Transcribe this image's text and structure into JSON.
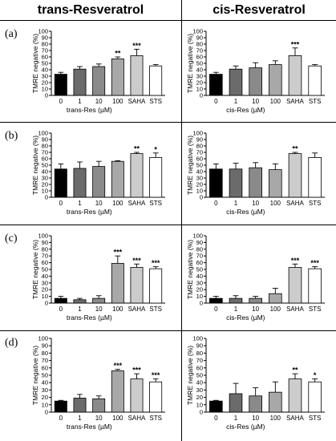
{
  "headers": {
    "left": "trans-Resveratrol",
    "right": "cis-Resveratrol"
  },
  "chart_data": [
    {
      "type": "bar",
      "panel": "(a)",
      "column": "trans",
      "ylabel": "TMRE negative (%)",
      "xlabel": "trans-Res (µM)",
      "ylim": [
        0,
        100
      ],
      "yticks": [
        0,
        10,
        20,
        30,
        40,
        50,
        60,
        70,
        80,
        90,
        100
      ],
      "categories": [
        "0",
        "1",
        "10",
        "100",
        "SAHA",
        "STS"
      ],
      "values": [
        33,
        41,
        45,
        57,
        62,
        46
      ],
      "errors": [
        3,
        4,
        4,
        3,
        10,
        2
      ],
      "annotations": [
        "",
        "",
        "",
        "**",
        "***",
        ""
      ],
      "bar_colors": [
        "#000000",
        "#6b6b6b",
        "#8a8a8a",
        "#a8a8a8",
        "#cccccc",
        "#ffffff"
      ]
    },
    {
      "type": "bar",
      "panel": "(a)",
      "column": "cis",
      "ylabel": "TMRE negative (%)",
      "xlabel": "cis-Res (µM)",
      "ylim": [
        0,
        100
      ],
      "yticks": [
        0,
        10,
        20,
        30,
        40,
        50,
        60,
        70,
        80,
        90,
        100
      ],
      "categories": [
        "0",
        "1",
        "10",
        "100",
        "SAHA",
        "STS"
      ],
      "values": [
        33,
        41,
        43,
        48,
        62,
        46
      ],
      "errors": [
        3,
        5,
        8,
        6,
        12,
        2
      ],
      "annotations": [
        "",
        "",
        "",
        "",
        "***",
        ""
      ],
      "bar_colors": [
        "#000000",
        "#6b6b6b",
        "#8a8a8a",
        "#a8a8a8",
        "#cccccc",
        "#ffffff"
      ]
    },
    {
      "type": "bar",
      "panel": "(b)",
      "column": "trans",
      "ylabel": "TMRE negative (%)",
      "xlabel": "trans-Res (µM)",
      "ylim": [
        0,
        100
      ],
      "yticks": [
        0,
        10,
        20,
        30,
        40,
        50,
        60,
        70,
        80,
        90,
        100
      ],
      "categories": [
        "0",
        "1",
        "10",
        "100",
        "SAHA",
        "STS"
      ],
      "values": [
        44,
        45,
        48,
        56,
        68,
        62
      ],
      "errors": [
        8,
        10,
        8,
        1,
        2,
        7
      ],
      "annotations": [
        "",
        "",
        "",
        "",
        "**",
        "*"
      ],
      "bar_colors": [
        "#000000",
        "#6b6b6b",
        "#8a8a8a",
        "#a8a8a8",
        "#cccccc",
        "#ffffff"
      ]
    },
    {
      "type": "bar",
      "panel": "(b)",
      "column": "cis",
      "ylabel": "TMRE negative (%)",
      "xlabel": "cis-Res (µM)",
      "ylim": [
        0,
        100
      ],
      "yticks": [
        0,
        10,
        20,
        30,
        40,
        50,
        60,
        70,
        80,
        90,
        100
      ],
      "categories": [
        "0",
        "1",
        "10",
        "100",
        "SAHA",
        "STS"
      ],
      "values": [
        44,
        44,
        46,
        43,
        68,
        62
      ],
      "errors": [
        8,
        9,
        8,
        9,
        2,
        7
      ],
      "annotations": [
        "",
        "",
        "",
        "",
        "**",
        ""
      ],
      "bar_colors": [
        "#000000",
        "#6b6b6b",
        "#8a8a8a",
        "#a8a8a8",
        "#cccccc",
        "#ffffff"
      ]
    },
    {
      "type": "bar",
      "panel": "(c)",
      "column": "trans",
      "ylabel": "TMRE negative (%)",
      "xlabel": "trans-Res (µM)",
      "ylim": [
        0,
        100
      ],
      "yticks": [
        0,
        10,
        20,
        30,
        40,
        50,
        60,
        70,
        80,
        90,
        100
      ],
      "categories": [
        "0",
        "1",
        "10",
        "100",
        "SAHA",
        "STS"
      ],
      "values": [
        7,
        5,
        7,
        59,
        53,
        51
      ],
      "errors": [
        3,
        2,
        4,
        11,
        5,
        3
      ],
      "annotations": [
        "",
        "",
        "",
        "***",
        "***",
        "***"
      ],
      "bar_colors": [
        "#000000",
        "#6b6b6b",
        "#8a8a8a",
        "#a8a8a8",
        "#cccccc",
        "#ffffff"
      ]
    },
    {
      "type": "bar",
      "panel": "(c)",
      "column": "cis",
      "ylabel": "TMRE negative (%)",
      "xlabel": "cis-Res (µM)",
      "ylim": [
        0,
        100
      ],
      "yticks": [
        0,
        10,
        20,
        30,
        40,
        50,
        60,
        70,
        80,
        90,
        100
      ],
      "categories": [
        "0",
        "1",
        "10",
        "100",
        "SAHA",
        "STS"
      ],
      "values": [
        7,
        7,
        7,
        14,
        53,
        51
      ],
      "errors": [
        3,
        4,
        3,
        8,
        5,
        3
      ],
      "annotations": [
        "",
        "",
        "",
        "",
        "***",
        "***"
      ],
      "bar_colors": [
        "#000000",
        "#6b6b6b",
        "#8a8a8a",
        "#a8a8a8",
        "#cccccc",
        "#ffffff"
      ]
    },
    {
      "type": "bar",
      "panel": "(d)",
      "column": "trans",
      "ylabel": "TMRE negative (%)",
      "xlabel": "trans-Res (µM)",
      "ylim": [
        0,
        100
      ],
      "yticks": [
        0,
        10,
        20,
        30,
        40,
        50,
        60,
        70,
        80,
        90,
        100
      ],
      "categories": [
        "0",
        "1",
        "10",
        "100",
        "SAHA",
        "STS"
      ],
      "values": [
        15,
        19,
        18,
        56,
        45,
        41
      ],
      "errors": [
        1,
        5,
        4,
        2,
        7,
        4
      ],
      "annotations": [
        "",
        "",
        "",
        "***",
        "***",
        "***"
      ],
      "bar_colors": [
        "#000000",
        "#6b6b6b",
        "#8a8a8a",
        "#a8a8a8",
        "#cccccc",
        "#ffffff"
      ]
    },
    {
      "type": "bar",
      "panel": "(d)",
      "column": "cis",
      "ylabel": "TMRE negative (%)",
      "xlabel": "cis-Res (µM)",
      "ylim": [
        0,
        100
      ],
      "yticks": [
        0,
        10,
        20,
        30,
        40,
        50,
        60,
        70,
        80,
        90,
        100
      ],
      "categories": [
        "0",
        "1",
        "10",
        "100",
        "SAHA",
        "STS"
      ],
      "values": [
        15,
        25,
        22,
        27,
        45,
        41
      ],
      "errors": [
        1,
        14,
        11,
        14,
        7,
        4
      ],
      "annotations": [
        "",
        "",
        "",
        "",
        "**",
        "*"
      ],
      "bar_colors": [
        "#000000",
        "#6b6b6b",
        "#8a8a8a",
        "#a8a8a8",
        "#cccccc",
        "#ffffff"
      ]
    }
  ]
}
